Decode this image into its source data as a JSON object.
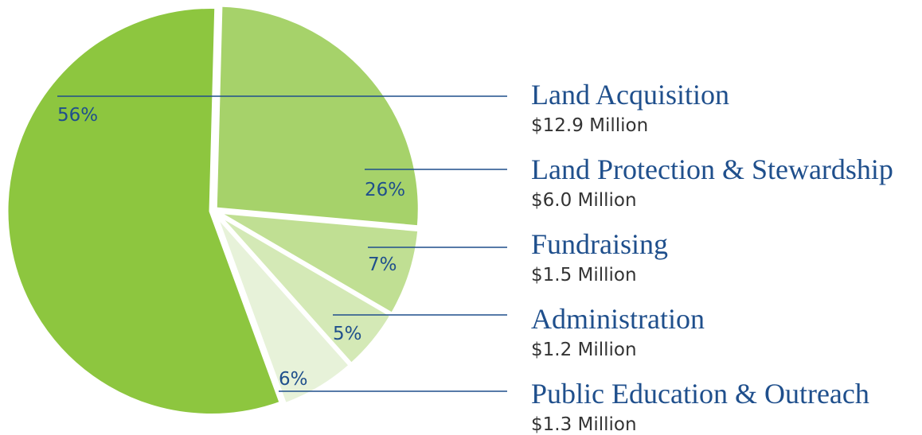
{
  "chart_data": {
    "type": "pie",
    "title": "",
    "slices": [
      {
        "label": "Land Protection & Stewardship",
        "amount": "$6.0 Million",
        "percent": 26,
        "percent_label": "26%",
        "color": "#a6d26a"
      },
      {
        "label": "Fundraising",
        "amount": "$1.5 Million",
        "percent": 7,
        "percent_label": "7%",
        "color": "#c0df93"
      },
      {
        "label": "Administration",
        "amount": "$1.2 Million",
        "percent": 5,
        "percent_label": "5%",
        "color": "#d4e9b6"
      },
      {
        "label": "Public Education & Outreach",
        "amount": "$1.3 Million",
        "percent": 6,
        "percent_label": "6%",
        "color": "#e7f2d9"
      },
      {
        "label": "Land Acquisition",
        "amount": "$12.9 Million",
        "percent": 56,
        "percent_label": "56%",
        "color": "#8dc63f"
      }
    ],
    "legend_order": [
      "Land Acquisition",
      "Land Protection & Stewardship",
      "Fundraising",
      "Administration",
      "Public Education & Outreach"
    ],
    "text_color": "#1f4f8c"
  }
}
